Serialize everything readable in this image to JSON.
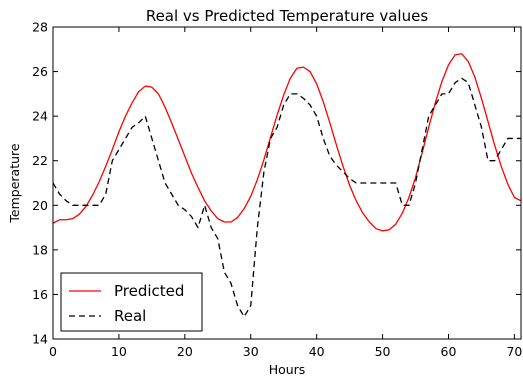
{
  "chart_data": {
    "type": "line",
    "title": "Real vs Predicted Temperature values",
    "xlabel": "Hours",
    "ylabel": "Temperature",
    "xlim": [
      0,
      71
    ],
    "ylim": [
      14,
      28
    ],
    "xticks": [
      0,
      10,
      20,
      30,
      40,
      50,
      60,
      70
    ],
    "yticks": [
      14,
      16,
      18,
      20,
      22,
      24,
      26,
      28
    ],
    "grid": false,
    "legend_position": "lower-left",
    "series": [
      {
        "name": "Predicted",
        "color": "#ff0000",
        "style": "solid",
        "x": [
          0,
          1,
          2,
          3,
          4,
          5,
          6,
          7,
          8,
          9,
          10,
          11,
          12,
          13,
          14,
          15,
          16,
          17,
          18,
          19,
          20,
          21,
          22,
          23,
          24,
          25,
          26,
          27,
          28,
          29,
          30,
          31,
          32,
          33,
          34,
          35,
          36,
          37,
          38,
          39,
          40,
          41,
          42,
          43,
          44,
          45,
          46,
          47,
          48,
          49,
          50,
          51,
          52,
          53,
          54,
          55,
          56,
          57,
          58,
          59,
          60,
          61,
          62,
          63,
          64,
          65,
          66,
          67,
          68,
          69,
          70,
          71
        ],
        "values": [
          19.2,
          19.35,
          19.35,
          19.4,
          19.6,
          19.95,
          20.45,
          21.05,
          21.75,
          22.5,
          23.3,
          24.0,
          24.6,
          25.1,
          25.35,
          25.3,
          25.0,
          24.4,
          23.7,
          22.95,
          22.2,
          21.45,
          20.8,
          20.2,
          19.75,
          19.4,
          19.25,
          19.25,
          19.45,
          19.85,
          20.4,
          21.15,
          22.05,
          23.05,
          24.05,
          24.95,
          25.7,
          26.15,
          26.2,
          26.0,
          25.45,
          24.65,
          23.7,
          22.7,
          21.75,
          20.9,
          20.2,
          19.65,
          19.25,
          18.95,
          18.85,
          18.9,
          19.15,
          19.65,
          20.35,
          21.25,
          22.35,
          23.5,
          24.6,
          25.55,
          26.3,
          26.75,
          26.8,
          26.45,
          25.75,
          24.8,
          23.75,
          22.7,
          21.75,
          20.95,
          20.35,
          20.2
        ]
      },
      {
        "name": "Real",
        "color": "#000000",
        "style": "dashed",
        "x": [
          0,
          1,
          2,
          3,
          4,
          5,
          6,
          7,
          8,
          9,
          10,
          11,
          12,
          13,
          14,
          15,
          16,
          17,
          18,
          19,
          20,
          21,
          22,
          23,
          24,
          25,
          26,
          27,
          28,
          29,
          30,
          31,
          32,
          33,
          34,
          35,
          36,
          37,
          38,
          39,
          40,
          41,
          42,
          43,
          44,
          45,
          46,
          47,
          48,
          49,
          50,
          51,
          52,
          53,
          54,
          55,
          56,
          57,
          58,
          59,
          60,
          61,
          62,
          63,
          64,
          65,
          66,
          67,
          68,
          69,
          70,
          71
        ],
        "values": [
          21.0,
          20.5,
          20.2,
          20.0,
          20.0,
          20.0,
          20.0,
          20.0,
          20.5,
          22.0,
          22.5,
          23.0,
          23.5,
          23.7,
          24.0,
          23.0,
          22.0,
          21.0,
          20.5,
          20.0,
          19.8,
          19.5,
          19.0,
          20.0,
          19.0,
          18.5,
          17.0,
          16.5,
          15.5,
          15.0,
          15.5,
          19.0,
          21.5,
          23.0,
          23.5,
          24.5,
          25.0,
          25.0,
          24.8,
          24.5,
          24.0,
          23.0,
          22.2,
          21.8,
          21.5,
          21.2,
          21.0,
          21.0,
          21.0,
          21.0,
          21.0,
          21.0,
          21.0,
          20.0,
          20.0,
          21.0,
          22.5,
          24.0,
          24.5,
          25.0,
          25.0,
          25.5,
          25.7,
          25.5,
          24.5,
          23.5,
          22.0,
          22.0,
          22.5,
          23.0,
          23.0,
          23.0
        ]
      }
    ]
  }
}
